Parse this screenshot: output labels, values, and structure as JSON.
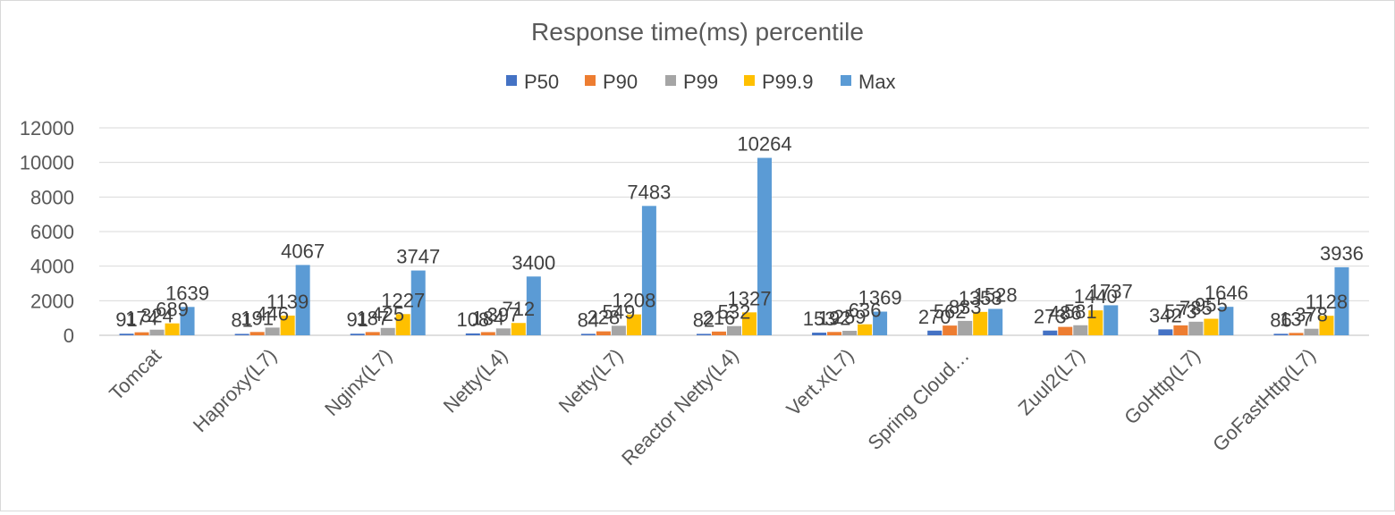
{
  "chart_data": {
    "type": "bar",
    "title": "Response time(ms) percentile",
    "xlabel": "",
    "ylabel": "",
    "ylim": [
      0,
      12000
    ],
    "yticks": [
      0,
      2000,
      4000,
      6000,
      8000,
      10000,
      12000
    ],
    "grid": true,
    "legend_position": "top",
    "categories": [
      "Tomcat",
      "Haproxy(L7)",
      "Nginx(L7)",
      "Netty(L4)",
      "Netty(L7)",
      "Reactor Netty(L4)",
      "Vert.x(L7)",
      "Spring Cloud…",
      "Zuul2(L7)",
      "GoHttp(L7)",
      "GoFastHttp(L7)"
    ],
    "series": [
      {
        "name": "P50",
        "color": "#4472c4",
        "values": [
          91,
          81,
          91,
          108,
          84,
          82,
          153,
          270,
          273,
          342,
          86
        ]
      },
      {
        "name": "P90",
        "color": "#ed7d31",
        "values": [
          174,
          191,
          187,
          184,
          228,
          216,
          192,
          562,
          486,
          573,
          137
        ]
      },
      {
        "name": "P99",
        "color": "#a5a5a5",
        "values": [
          324,
          446,
          425,
          397,
          549,
          532,
          259,
          833,
          581,
          785,
          378
        ]
      },
      {
        "name": "P99.9",
        "color": "#ffc000",
        "values": [
          689,
          1139,
          1227,
          712,
          1208,
          1327,
          636,
          1353,
          1440,
          955,
          1128
        ]
      },
      {
        "name": "Max",
        "color": "#5b9bd5",
        "values": [
          1639,
          4067,
          3747,
          3400,
          7483,
          10264,
          1369,
          1528,
          1737,
          1646,
          3936
        ]
      }
    ]
  }
}
